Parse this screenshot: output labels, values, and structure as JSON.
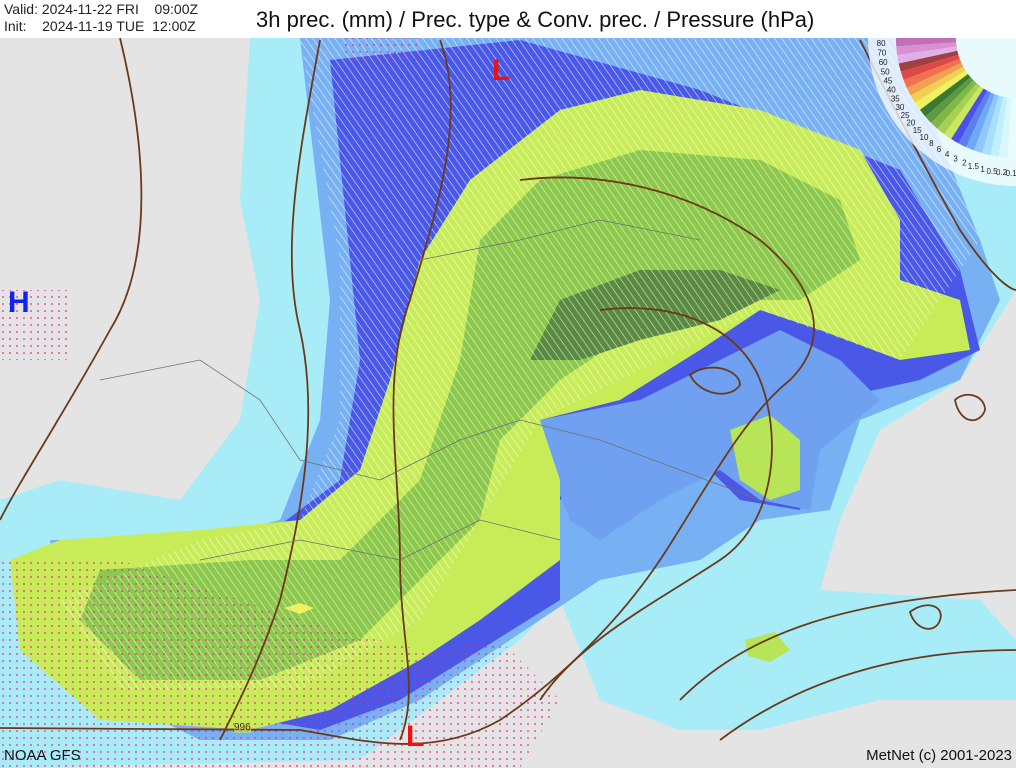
{
  "header": {
    "valid_label": "Valid:",
    "valid_value": "2024-11-22 FRI    09:00Z",
    "init_label": "Init:",
    "init_value": "2024-11-19 TUE  12:00Z",
    "title": "3h prec. (mm) / Prec. type & Conv. prec. / Pressure (hPa)"
  },
  "pressure_centers": [
    {
      "label": "L",
      "color": "#ee1111"
    },
    {
      "label": "H",
      "color": "#1122ee"
    },
    {
      "label": "L",
      "color": "#ee1111"
    }
  ],
  "isobar_label": "996",
  "legend": {
    "labels": [
      "80",
      "70",
      "60",
      "50",
      "45",
      "40",
      "35",
      "30",
      "25",
      "20",
      "15",
      "10",
      "8",
      "6",
      "4",
      "3",
      "2",
      "1.5",
      "1",
      "0.5",
      "0.2",
      "0.1"
    ],
    "colors": [
      "#c070b8",
      "#d890d0",
      "#e0b0e8",
      "#a04040",
      "#e04848",
      "#f07050",
      "#f0a050",
      "#f0d050",
      "#f0f060",
      "#3a7a30",
      "#5a9a40",
      "#80b848",
      "#a8d050",
      "#c8e860",
      "#4a50e8",
      "#5a80f0",
      "#70a8f8",
      "#90c8fc",
      "#a8e0fc",
      "#c0f0fc",
      "#d8f8fc",
      "#e8fcfc"
    ]
  },
  "footer": {
    "source": "NOAA GFS",
    "credit": "MetNet (c) 2001-2023"
  }
}
